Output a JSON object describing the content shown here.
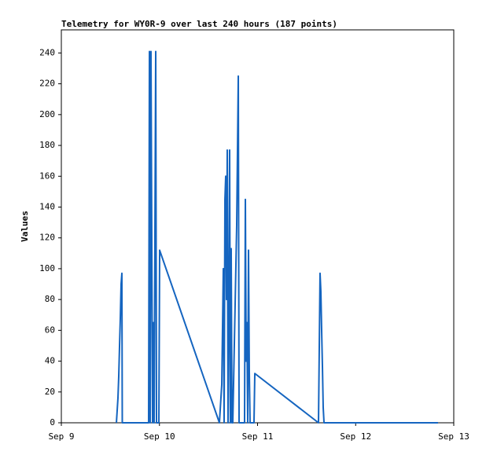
{
  "chart_data": {
    "type": "line",
    "title": "Telemetry for WY0R-9 over last 240 hours (187 points)",
    "ylabel": "Values",
    "x": [
      13.47,
      13.85,
      14.04,
      14.24,
      14.43,
      14.62,
      14.81,
      14.91,
      21.35,
      21.55,
      21.74,
      21.93,
      22.12,
      22.32,
      22.51,
      22.7,
      22.89,
      23.09,
      23.28,
      23.86,
      24.05,
      38.67,
      39.25,
      39.63,
      39.82,
      40.02,
      40.21,
      40.4,
      40.59,
      40.79,
      40.98,
      41.17,
      41.36,
      41.55,
      41.75,
      41.94,
      42.9,
      43.29,
      43.48,
      44.82,
      45.02,
      45.21,
      45.4,
      45.59,
      45.79,
      45.98,
      46.17,
      47.13,
      47.33,
      62.91,
      63.29,
      63.49,
      63.68,
      63.87,
      64.06,
      64.26,
      92.15
    ],
    "series": [
      {
        "color": "#1565c0",
        "values": [
          0,
          16,
          30,
          50,
          68,
          90,
          97,
          0,
          0,
          241,
          0,
          241,
          120,
          0,
          65,
          0,
          120,
          241,
          0,
          0,
          112,
          0,
          25,
          100,
          0,
          145,
          160,
          80,
          177,
          0,
          65,
          177,
          0,
          113,
          0,
          0,
          128,
          225,
          0,
          0,
          145,
          40,
          65,
          0,
          112,
          33,
          0,
          0,
          32,
          0,
          97,
          85,
          60,
          37,
          10,
          0,
          0
        ]
      }
    ],
    "xlim": [
      0,
      96
    ],
    "xticks": [
      {
        "value": 0,
        "label": "Sep 9"
      },
      {
        "value": 24,
        "label": "Sep 10"
      },
      {
        "value": 48,
        "label": "Sep 11"
      },
      {
        "value": 72,
        "label": "Sep 12"
      },
      {
        "value": 96,
        "label": "Sep 13"
      }
    ],
    "ylim": [
      0,
      255
    ],
    "yticks": [
      0,
      20,
      40,
      60,
      80,
      100,
      120,
      140,
      160,
      180,
      200,
      220,
      240
    ],
    "grid": false
  }
}
